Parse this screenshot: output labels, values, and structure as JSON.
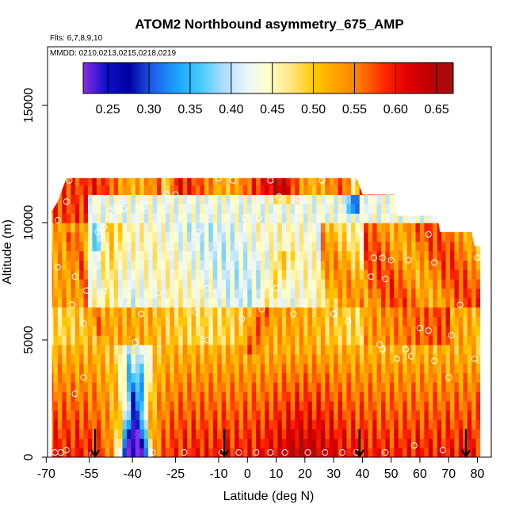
{
  "chart_data": {
    "type": "heatmap",
    "title": "ATOM2 Northbound asymmetry_675_AMP",
    "subtitle_flights": "Flts: 6,7,8,9,10",
    "subtitle_dates": "MMDD: 0210,0213,0215,0218,0219",
    "xlabel": "Latitude (deg N)",
    "ylabel": "Altitude (m)",
    "xlim": [
      -70,
      85
    ],
    "ylim": [
      0,
      17500
    ],
    "x_ticks": [
      {
        "value": -70,
        "label": "-70"
      },
      {
        "value": -55,
        "label": "-55"
      },
      {
        "value": -40,
        "label": "-40"
      },
      {
        "value": -25,
        "label": "-25"
      },
      {
        "value": -10,
        "label": "-10"
      },
      {
        "value": 0,
        "label": "0"
      },
      {
        "value": 10,
        "label": "10"
      },
      {
        "value": 20,
        "label": "20"
      },
      {
        "value": 30,
        "label": "30"
      },
      {
        "value": 40,
        "label": "40"
      },
      {
        "value": 50,
        "label": "50"
      },
      {
        "value": 60,
        "label": "60"
      },
      {
        "value": 70,
        "label": "70"
      },
      {
        "value": 80,
        "label": "80"
      }
    ],
    "y_ticks": [
      {
        "value": 0,
        "label": "0"
      },
      {
        "value": 5000,
        "label": "5000"
      },
      {
        "value": 10000,
        "label": "10000"
      },
      {
        "value": 15000,
        "label": "15000"
      }
    ],
    "colorbar": {
      "min": 0.22,
      "max": 0.67,
      "ticks": [
        {
          "value": 0.25,
          "label": "0.25"
        },
        {
          "value": 0.3,
          "label": "0.30"
        },
        {
          "value": 0.35,
          "label": "0.35"
        },
        {
          "value": 0.4,
          "label": "0.40"
        },
        {
          "value": 0.45,
          "label": "0.45"
        },
        {
          "value": 0.5,
          "label": "0.50"
        },
        {
          "value": 0.55,
          "label": "0.55"
        },
        {
          "value": 0.6,
          "label": "0.60"
        },
        {
          "value": 0.65,
          "label": "0.65"
        }
      ],
      "colors": [
        "#8a2be2",
        "#1010c8",
        "#0000a0",
        "#1e5ee8",
        "#1aa0ff",
        "#40c8ff",
        "#a8dcff",
        "#e8f4ff",
        "#ffffc8",
        "#ffe680",
        "#ffc800",
        "#ffa000",
        "#ff7800",
        "#ff2800",
        "#e00000",
        "#c00000",
        "#a01010"
      ]
    },
    "profile_marker_latitudes": [
      -53,
      -8,
      39,
      76
    ],
    "profile_top": [
      {
        "lat": -68,
        "top": 10500
      },
      {
        "lat": -66,
        "top": 10900
      },
      {
        "lat": -63,
        "top": 11900
      },
      {
        "lat": -32,
        "top": 11900
      },
      {
        "lat": 38,
        "top": 11900
      },
      {
        "lat": 40,
        "top": 11200
      },
      {
        "lat": 51,
        "top": 11200
      },
      {
        "lat": 52,
        "top": 10300
      },
      {
        "lat": 66,
        "top": 10300
      },
      {
        "lat": 67,
        "top": 9600
      },
      {
        "lat": 78,
        "top": 9600
      },
      {
        "lat": 79,
        "top": 9000
      },
      {
        "lat": 81,
        "top": 9000
      }
    ],
    "sample_points": [
      [
        -67,
        200
      ],
      [
        -65,
        200
      ],
      [
        -63,
        300
      ],
      [
        -60,
        2700
      ],
      [
        -57,
        3400
      ],
      [
        -54,
        100
      ],
      [
        -45,
        200
      ],
      [
        -33,
        200
      ],
      [
        -22,
        200
      ],
      [
        -9,
        200
      ],
      [
        -3,
        200
      ],
      [
        3,
        200
      ],
      [
        8,
        200
      ],
      [
        13,
        200
      ],
      [
        21,
        200
      ],
      [
        27,
        200
      ],
      [
        33,
        200
      ],
      [
        38,
        200
      ],
      [
        48,
        200
      ],
      [
        58,
        500
      ],
      [
        68,
        300
      ],
      [
        -66,
        10100
      ],
      [
        -63,
        10900
      ],
      [
        -62,
        11800
      ],
      [
        -48,
        10500
      ],
      [
        -43,
        10600
      ],
      [
        -36,
        10700
      ],
      [
        -28,
        11200
      ],
      [
        -25,
        11200
      ],
      [
        -10,
        11900
      ],
      [
        -5,
        11800
      ],
      [
        8,
        11800
      ],
      [
        11,
        11100
      ],
      [
        18,
        11000
      ],
      [
        26,
        11800
      ],
      [
        37,
        11900
      ],
      [
        -52,
        9600
      ],
      [
        -50,
        9800
      ],
      [
        -17,
        9600
      ],
      [
        -1,
        10200
      ],
      [
        4,
        10200
      ],
      [
        39,
        9600
      ],
      [
        63,
        9500
      ],
      [
        -66,
        8100
      ],
      [
        -60,
        7700
      ],
      [
        -56,
        7100
      ],
      [
        -50,
        7100
      ],
      [
        -31,
        7000
      ],
      [
        -14,
        7200
      ],
      [
        10,
        7200
      ],
      [
        44,
        8500
      ],
      [
        47,
        8500
      ],
      [
        50,
        8400
      ],
      [
        56,
        8400
      ],
      [
        65,
        8300
      ],
      [
        75,
        9800
      ],
      [
        80,
        8500
      ],
      [
        43,
        7700
      ],
      [
        48,
        7600
      ],
      [
        -61,
        6500
      ],
      [
        -57,
        5700
      ],
      [
        -37,
        6100
      ],
      [
        -18,
        6200
      ],
      [
        -2,
        5900
      ],
      [
        5,
        6300
      ],
      [
        16,
        6100
      ],
      [
        30,
        6100
      ],
      [
        35,
        5800
      ],
      [
        47,
        4600
      ],
      [
        46,
        4800
      ],
      [
        52,
        4200
      ],
      [
        55,
        4600
      ],
      [
        57,
        4300
      ],
      [
        60,
        5500
      ],
      [
        63,
        5400
      ],
      [
        65,
        4100
      ],
      [
        71,
        5200
      ],
      [
        74,
        6500
      ],
      [
        -39,
        4900
      ],
      [
        -14,
        5000
      ],
      [
        79,
        4200
      ],
      [
        70,
        3400
      ]
    ]
  }
}
